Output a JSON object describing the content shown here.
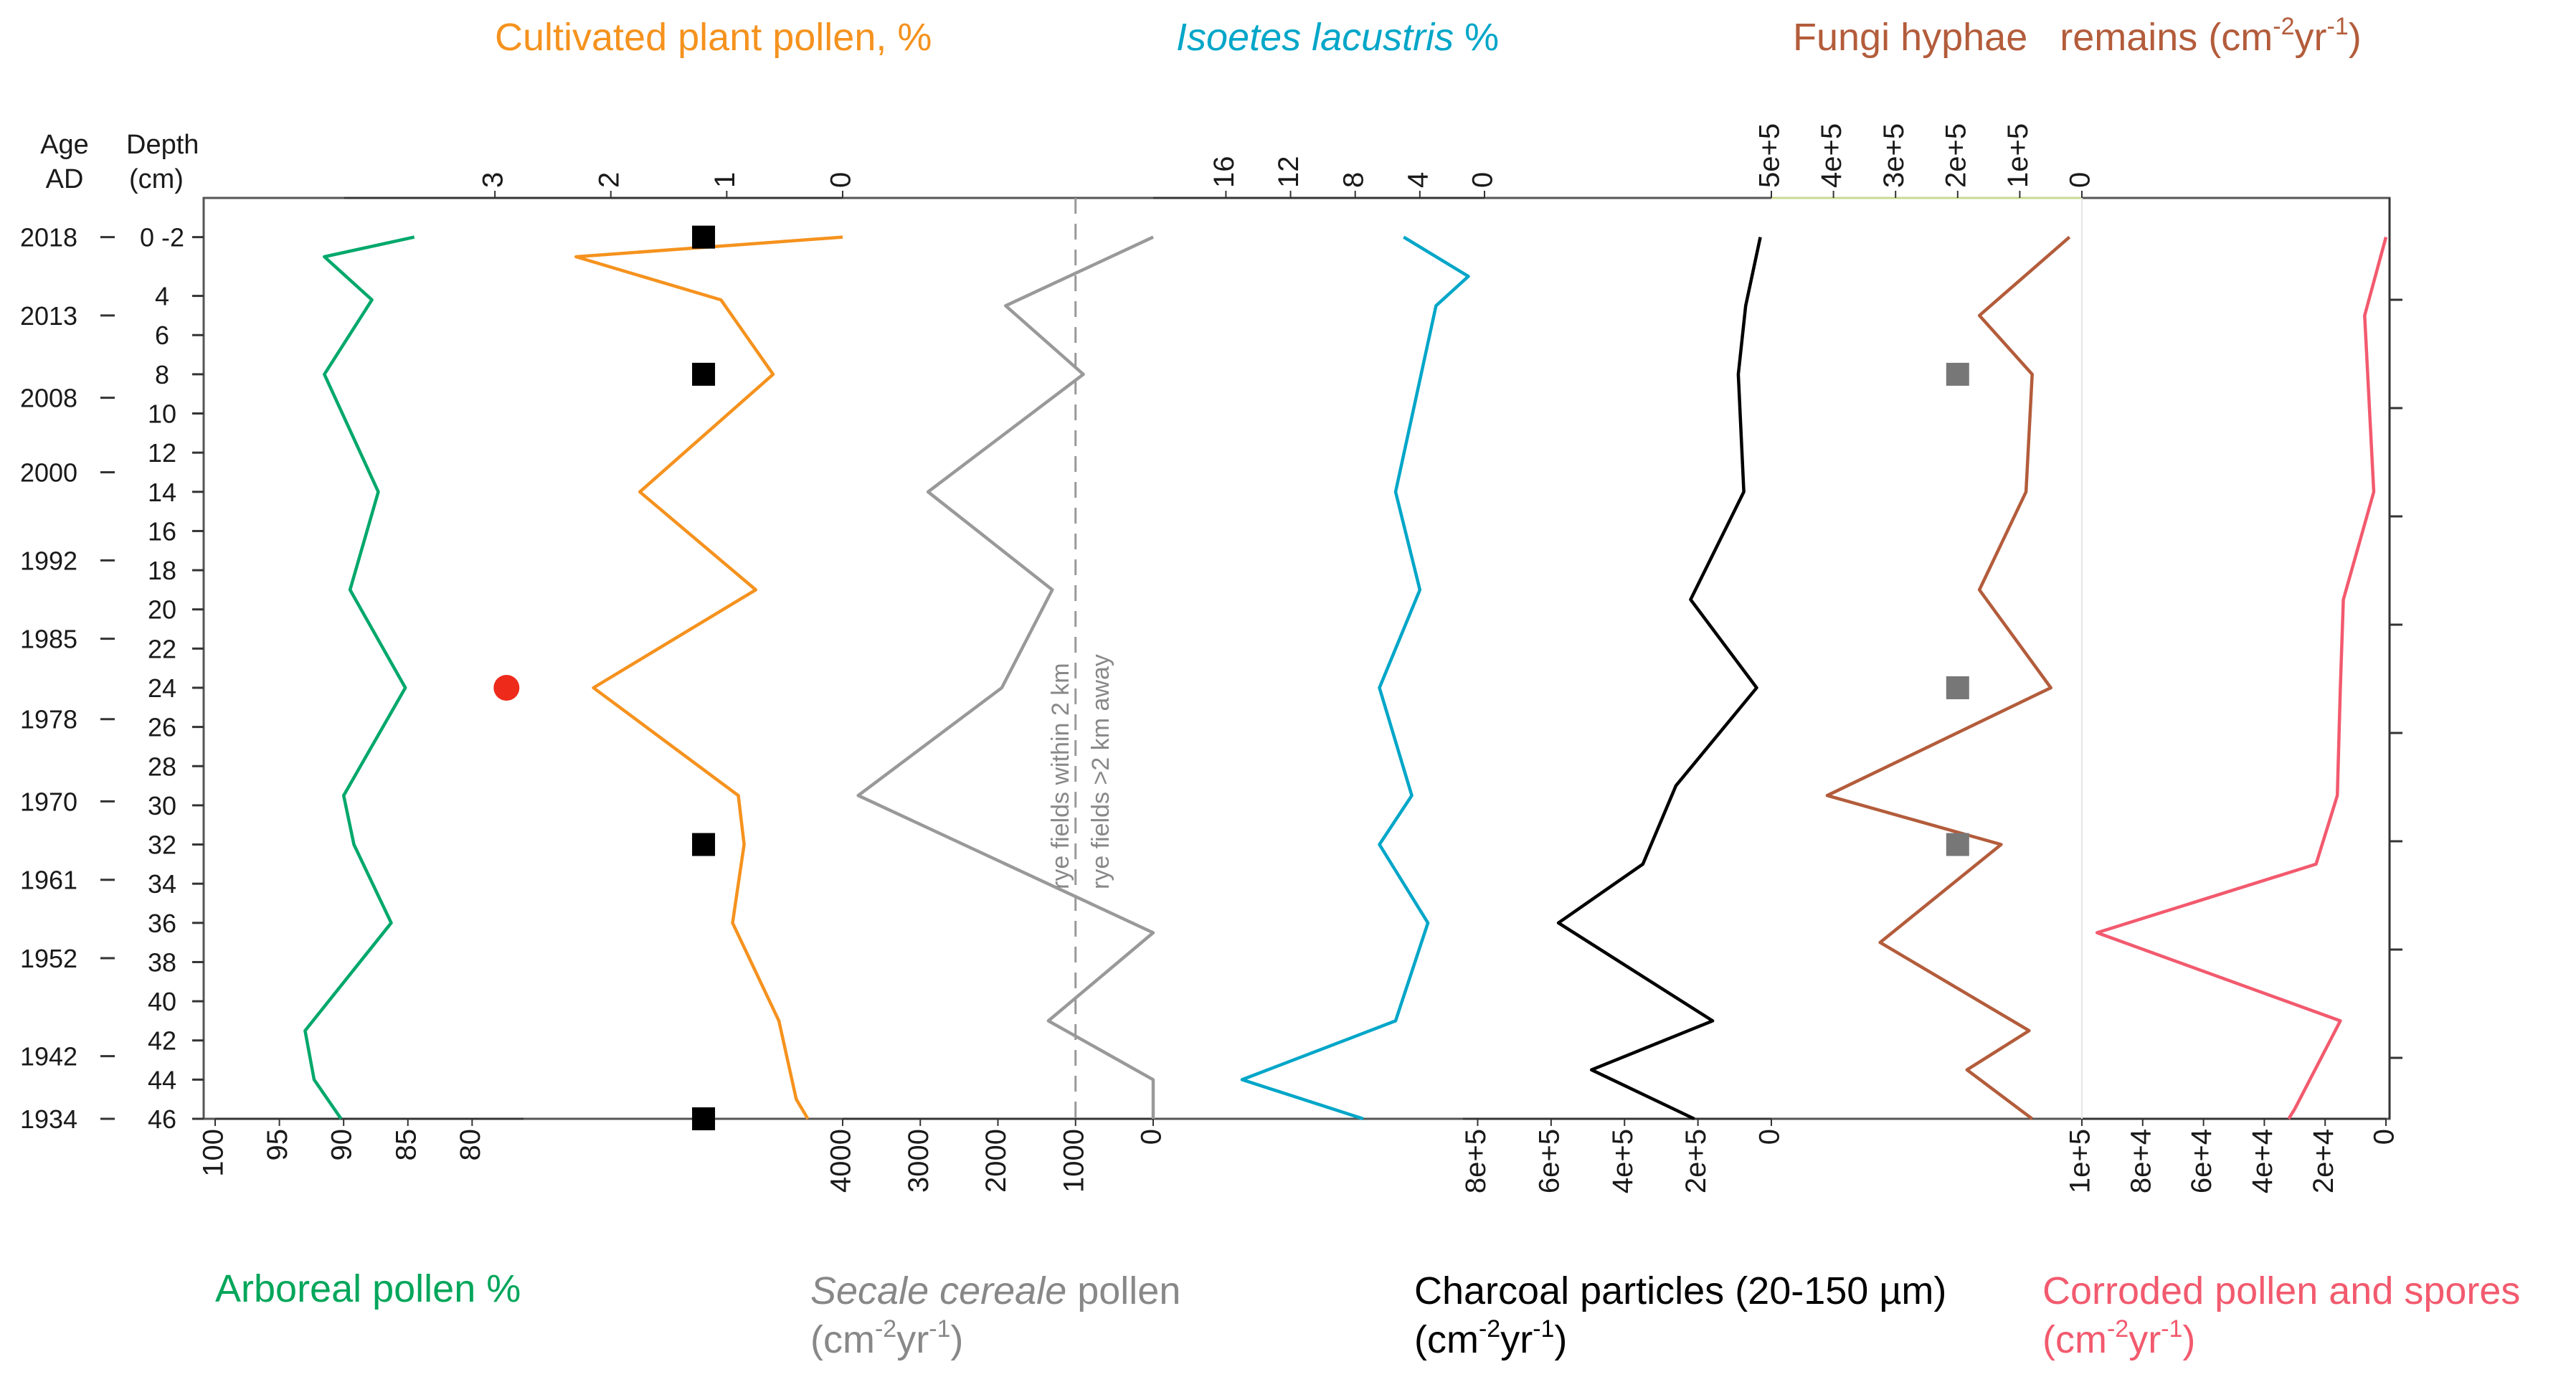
{
  "chart_data": {
    "type": "line",
    "orientation": "vertical-stratigraphic",
    "y_axis": {
      "label_age": "Age",
      "label_age_unit": "AD",
      "label_depth": "Depth",
      "label_depth_unit": "(cm)",
      "depth_range": [
        -1,
        46
      ],
      "depth_ticks": [
        "0 -2",
        "4",
        "6",
        "8",
        "10",
        "12",
        "14",
        "16",
        "18",
        "20",
        "22",
        "24",
        "26",
        "28",
        "30",
        "32",
        "34",
        "36",
        "38",
        "40",
        "42",
        "44",
        "46"
      ],
      "age_ticks": [
        {
          "label": "2018",
          "depth": 1
        },
        {
          "label": "2013",
          "depth": 5
        },
        {
          "label": "2008",
          "depth": 9.2
        },
        {
          "label": "2000",
          "depth": 13
        },
        {
          "label": "1992",
          "depth": 17.5
        },
        {
          "label": "1985",
          "depth": 21.5
        },
        {
          "label": "1978",
          "depth": 25.6
        },
        {
          "label": "1970",
          "depth": 29.8
        },
        {
          "label": "1961",
          "depth": 33.8
        },
        {
          "label": "1952",
          "depth": 37.8
        },
        {
          "label": "1942",
          "depth": 42.8
        },
        {
          "label": "1934",
          "depth": 46
        }
      ]
    },
    "series": [
      {
        "name": "arboreal",
        "title": "Arboreal pollen %",
        "color": "#00a86b",
        "axis_position": "bottom",
        "range": [
          100,
          76
        ],
        "ticks": [
          "100",
          "95",
          "90",
          "85",
          "80"
        ],
        "tick_values": [
          100,
          95,
          90,
          85,
          80
        ],
        "points": [
          [
            84.5,
            1
          ],
          [
            91.5,
            2
          ],
          [
            87.8,
            4.2
          ],
          [
            91.5,
            8
          ],
          [
            87.3,
            14
          ],
          [
            89.5,
            19
          ],
          [
            85.2,
            24
          ],
          [
            90,
            29.5
          ],
          [
            89.2,
            32
          ],
          [
            86.3,
            36
          ],
          [
            93,
            41.5
          ],
          [
            92.3,
            44
          ],
          [
            90.2,
            46
          ]
        ]
      },
      {
        "name": "cultivated",
        "title": "Cultivated plant pollen, %",
        "color": "#f5921e",
        "axis_position": "top",
        "range": [
          4.3,
          0
        ],
        "ticks": [
          "3",
          "2",
          "1",
          "0"
        ],
        "tick_values": [
          3,
          2,
          1,
          0
        ],
        "points": [
          [
            0,
            1
          ],
          [
            2.3,
            2
          ],
          [
            1.05,
            4.2
          ],
          [
            0.6,
            8
          ],
          [
            1.75,
            14
          ],
          [
            0.75,
            19
          ],
          [
            2.15,
            24
          ],
          [
            0.9,
            29.5
          ],
          [
            0.85,
            32
          ],
          [
            0.95,
            36
          ],
          [
            0.55,
            41
          ],
          [
            0.4,
            45
          ],
          [
            0.3,
            46
          ]
        ]
      },
      {
        "name": "secale",
        "title_italic": "Secale cereale",
        "title_rest": " pollen",
        "unit_prefix": "(cm",
        "unit_sup": "-2",
        "unit_mid": "yr",
        "unit_sup2": "-1",
        "unit_suffix": ")",
        "color": "#999999",
        "axis_position": "bottom",
        "range": [
          4000,
          0
        ],
        "ticks": [
          "4000",
          "3000",
          "2000",
          "1000",
          "0"
        ],
        "tick_values": [
          4000,
          3000,
          2000,
          1000,
          0
        ],
        "points": [
          [
            0,
            1
          ],
          [
            1900,
            4.5
          ],
          [
            900,
            8
          ],
          [
            2900,
            14
          ],
          [
            1300,
            19
          ],
          [
            1950,
            24
          ],
          [
            3800,
            29.5
          ],
          [
            0,
            36.5
          ],
          [
            1350,
            41
          ],
          [
            0,
            44
          ],
          [
            0,
            46
          ]
        ]
      },
      {
        "name": "isoetes",
        "title": "Isoetes lacustris",
        "title_suffix": " %",
        "color": "#00a6c8",
        "axis_position": "top",
        "range": [
          20.5,
          0
        ],
        "ticks": [
          "16",
          "12",
          "8",
          "4",
          "0"
        ],
        "tick_values": [
          16,
          12,
          8,
          4,
          0
        ],
        "points": [
          [
            5,
            1
          ],
          [
            1,
            3
          ],
          [
            3,
            4.5
          ],
          [
            5.5,
            14
          ],
          [
            4,
            19
          ],
          [
            6.5,
            24
          ],
          [
            4.5,
            29.5
          ],
          [
            6.5,
            32
          ],
          [
            3.5,
            36
          ],
          [
            5.5,
            41
          ],
          [
            15,
            44
          ],
          [
            7.5,
            46
          ]
        ]
      },
      {
        "name": "charcoal",
        "title": "Charcoal particles (20-150 µm)",
        "unit_prefix": "(cm",
        "unit_sup": "-2",
        "unit_mid": "yr",
        "unit_sup2": "-1",
        "unit_suffix": ")",
        "color": "#000000",
        "axis_position": "bottom",
        "range": [
          840000,
          0
        ],
        "ticks": [
          "8e+5",
          "6e+5",
          "4e+5",
          "2e+5",
          "0"
        ],
        "tick_values": [
          800000,
          600000,
          400000,
          200000,
          0
        ],
        "points": [
          [
            30000,
            1
          ],
          [
            70000,
            4.5
          ],
          [
            90000,
            8
          ],
          [
            75000,
            14
          ],
          [
            220000,
            19.5
          ],
          [
            40000,
            24
          ],
          [
            260000,
            29
          ],
          [
            350000,
            33
          ],
          [
            580000,
            36
          ],
          [
            160000,
            41
          ],
          [
            490000,
            43.5
          ],
          [
            210000,
            46
          ]
        ]
      },
      {
        "name": "fungi",
        "title": "Fungi hyphae   remains",
        "unit_prefix": " (cm",
        "unit_sup": "-2",
        "unit_mid": "yr",
        "unit_sup2": "-1",
        "unit_suffix": ")",
        "color": "#b35c3b",
        "axis_position": "top",
        "range": [
          500000,
          0
        ],
        "ticks": [
          "5e+5",
          "4e+5",
          "3e+5",
          "2e+5",
          "1e+5",
          "0"
        ],
        "tick_values": [
          500000,
          400000,
          300000,
          200000,
          100000,
          0
        ],
        "points": [
          [
            20000,
            1
          ],
          [
            165000,
            5
          ],
          [
            80000,
            8
          ],
          [
            90000,
            14
          ],
          [
            165000,
            19
          ],
          [
            50000,
            24
          ],
          [
            410000,
            29.5
          ],
          [
            130000,
            32
          ],
          [
            325000,
            37
          ],
          [
            85000,
            41.5
          ],
          [
            185000,
            43.5
          ],
          [
            80000,
            46
          ]
        ]
      },
      {
        "name": "corroded",
        "title": "Corroded pollen and spores",
        "unit_prefix": "(cm",
        "unit_sup": "-2",
        "unit_mid": "yr",
        "unit_sup2": "-1",
        "unit_suffix": ")",
        "color": "#f25a6e",
        "axis_position": "bottom",
        "range": [
          100000,
          0
        ],
        "ticks": [
          "1e+5",
          "8e+4",
          "6e+4",
          "4e+4",
          "2e+4",
          "0"
        ],
        "tick_values": [
          100000,
          80000,
          60000,
          40000,
          20000,
          0
        ],
        "points": [
          [
            0,
            1
          ],
          [
            7000,
            5
          ],
          [
            4000,
            14
          ],
          [
            14000,
            19.5
          ],
          [
            15000,
            24
          ],
          [
            16000,
            29.5
          ],
          [
            23000,
            33
          ],
          [
            95000,
            36.5
          ],
          [
            15000,
            41
          ],
          [
            30000,
            45.5
          ],
          [
            32000,
            46
          ]
        ]
      }
    ],
    "markers": [
      {
        "shape": "square",
        "color": "#000000",
        "x_pct": 1.2,
        "depth": 1
      },
      {
        "shape": "square",
        "color": "#000000",
        "x_pct": 1.2,
        "depth": 8
      },
      {
        "shape": "square",
        "color": "#000000",
        "x_pct": 1.2,
        "depth": 32
      },
      {
        "shape": "square",
        "color": "#000000",
        "x_pct": 1.2,
        "depth": 46
      },
      {
        "shape": "circle",
        "color": "#ee2a1b",
        "x_pct": 2.9,
        "depth": 24
      },
      {
        "shape": "square",
        "color": "#777777",
        "x_fungi": 200000,
        "depth": 8
      },
      {
        "shape": "square",
        "color": "#777777",
        "x_fungi": 200000,
        "depth": 24
      },
      {
        "shape": "square",
        "color": "#777777",
        "x_fungi": 200000,
        "depth": 32
      }
    ],
    "annotations": {
      "rye_threshold_value": 1000,
      "rye_label_within": "rye fields within 2 km",
      "rye_label_away": "rye fields >2 km away"
    }
  }
}
